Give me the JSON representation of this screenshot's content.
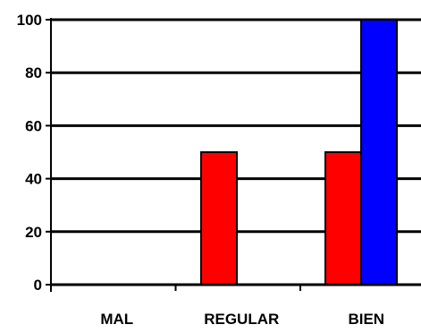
{
  "chart_data": {
    "type": "bar",
    "categories": [
      "MAL",
      "REGULAR",
      "BIEN"
    ],
    "series": [
      {
        "color": "#ff0000",
        "values": [
          0,
          50,
          50
        ]
      },
      {
        "color": "#0000ff",
        "values": [
          0,
          0,
          100
        ]
      }
    ],
    "ylim": [
      0,
      100
    ],
    "yticks": [
      0,
      20,
      40,
      60,
      80,
      100
    ],
    "grid": true,
    "legend": "none",
    "title": "",
    "xlabel": "",
    "ylabel": ""
  }
}
